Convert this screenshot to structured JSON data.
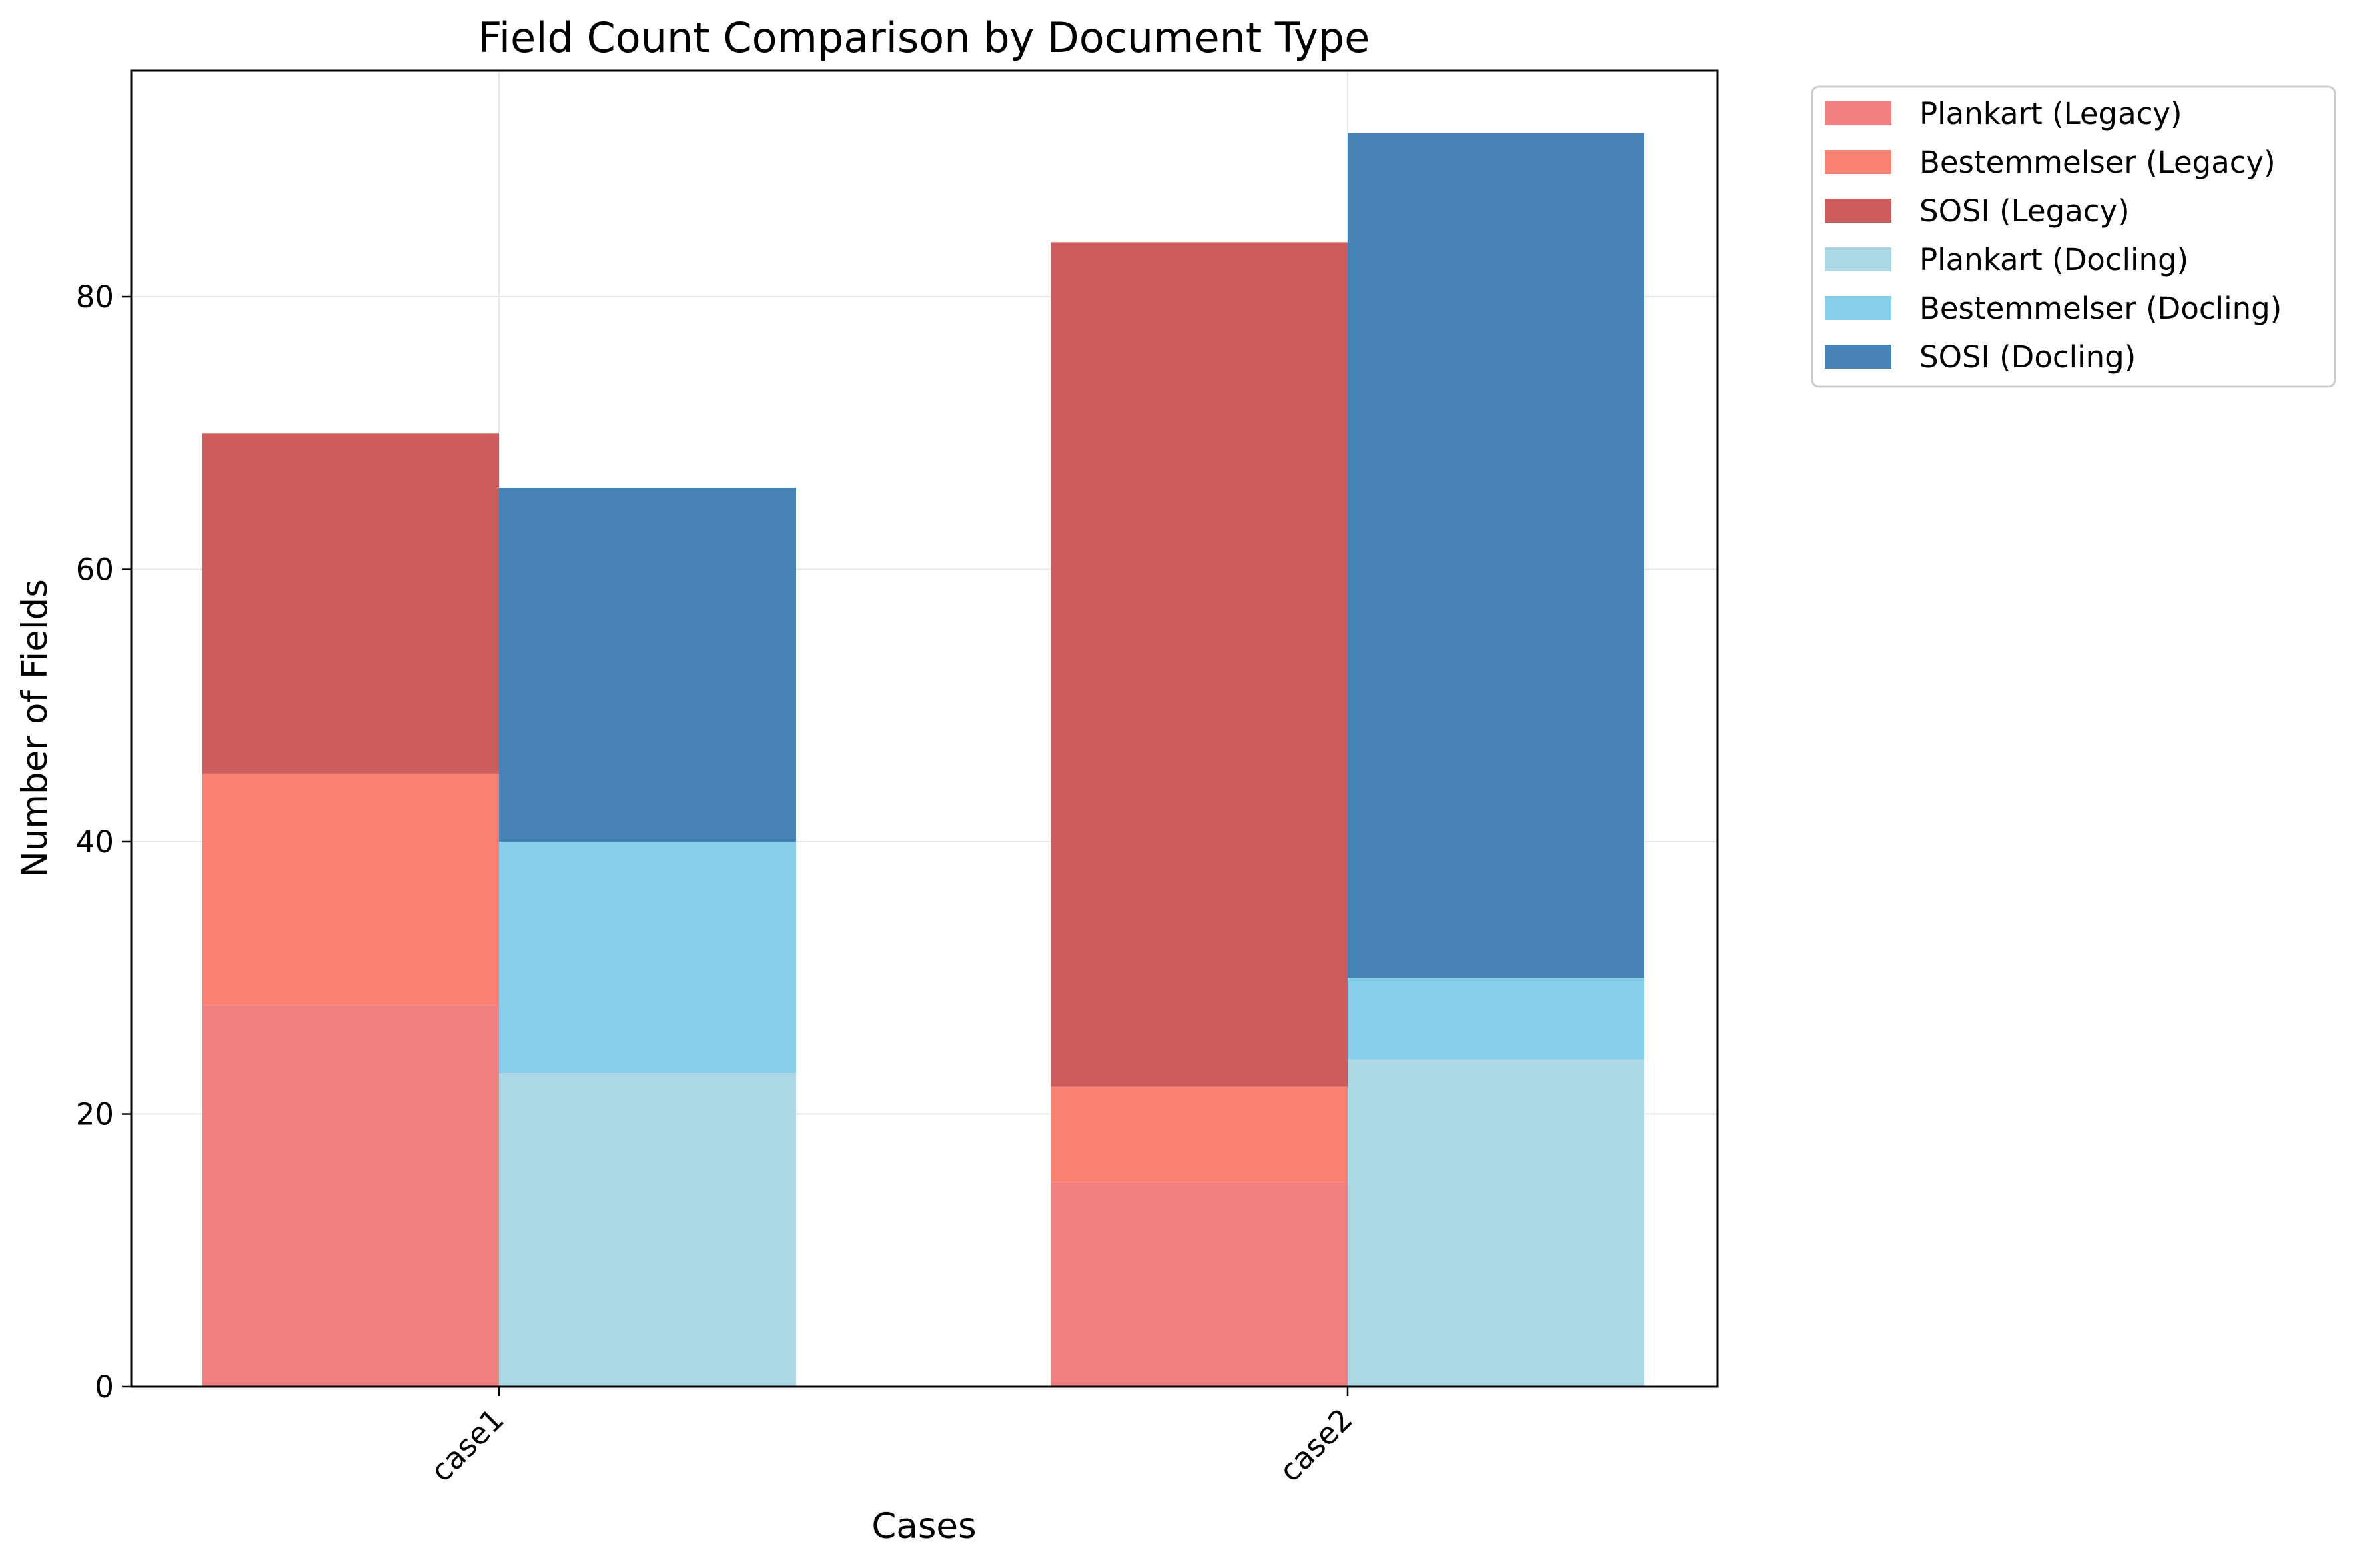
{
  "chart_data": {
    "type": "bar",
    "stacked": true,
    "title": "Field Count Comparison by Document Type",
    "xlabel": "Cases",
    "ylabel": "Number of Fields",
    "categories": [
      "case1",
      "case2"
    ],
    "ylim": [
      0,
      96.6
    ],
    "yticks": [
      0,
      20,
      40,
      60,
      80
    ],
    "grid": true,
    "legend_position": "outside-top-right",
    "groups": [
      {
        "name": "Legacy",
        "offset": "left",
        "series": [
          {
            "name": "Plankart (Legacy)",
            "color": "#f08080",
            "values": [
              28,
              15
            ]
          },
          {
            "name": "Bestemmelser (Legacy)",
            "color": "#fa8072",
            "values": [
              17,
              7
            ]
          },
          {
            "name": "SOSI (Legacy)",
            "color": "#cd5c5c",
            "values": [
              25,
              62
            ]
          }
        ]
      },
      {
        "name": "Docling",
        "offset": "right",
        "series": [
          {
            "name": "Plankart (Docling)",
            "color": "#add8e6",
            "values": [
              23,
              24
            ]
          },
          {
            "name": "Bestemmelser (Docling)",
            "color": "#87ceeb",
            "values": [
              17,
              6
            ]
          },
          {
            "name": "SOSI (Docling)",
            "color": "#4682b4",
            "values": [
              26,
              62
            ]
          }
        ]
      }
    ]
  }
}
